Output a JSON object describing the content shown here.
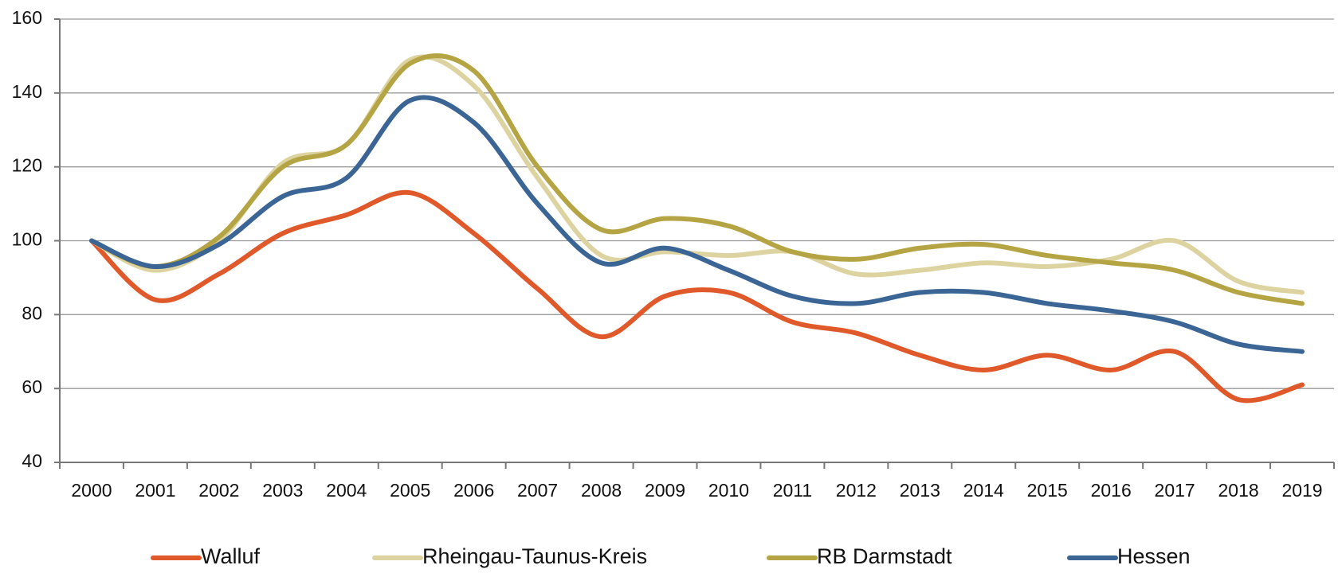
{
  "chart_data": {
    "type": "line",
    "categories": [
      "2000",
      "2001",
      "2002",
      "2003",
      "2004",
      "2005",
      "2006",
      "2007",
      "2008",
      "2009",
      "2010",
      "2011",
      "2012",
      "2013",
      "2014",
      "2015",
      "2016",
      "2017",
      "2018",
      "2019"
    ],
    "series": [
      {
        "name": "Walluf",
        "color": "#e0592a",
        "values": [
          100,
          84,
          91,
          102,
          107,
          113,
          102,
          87,
          74,
          85,
          86,
          78,
          75,
          69,
          65,
          69,
          65,
          70,
          57,
          61
        ]
      },
      {
        "name": "Rheingau-Taunus-Kreis",
        "color": "#ddd3a0",
        "values": [
          100,
          92,
          100,
          121,
          126,
          149,
          142,
          117,
          96,
          97,
          96,
          97,
          91,
          92,
          94,
          93,
          95,
          100,
          89,
          86
        ]
      },
      {
        "name": "RB Darmstadt",
        "color": "#b5a444",
        "values": [
          100,
          93,
          101,
          120,
          126,
          148,
          146,
          120,
          103,
          106,
          104,
          97,
          95,
          98,
          99,
          96,
          94,
          92,
          86,
          83
        ]
      },
      {
        "name": "Hessen",
        "color": "#3a6595",
        "values": [
          100,
          93,
          99,
          112,
          117,
          138,
          132,
          110,
          94,
          98,
          92,
          85,
          83,
          86,
          86,
          83,
          81,
          78,
          72,
          70
        ]
      }
    ],
    "ylim": [
      40,
      160
    ],
    "yticks": [
      40,
      60,
      80,
      100,
      120,
      140,
      160
    ],
    "grid": true,
    "legend": "bottom"
  }
}
